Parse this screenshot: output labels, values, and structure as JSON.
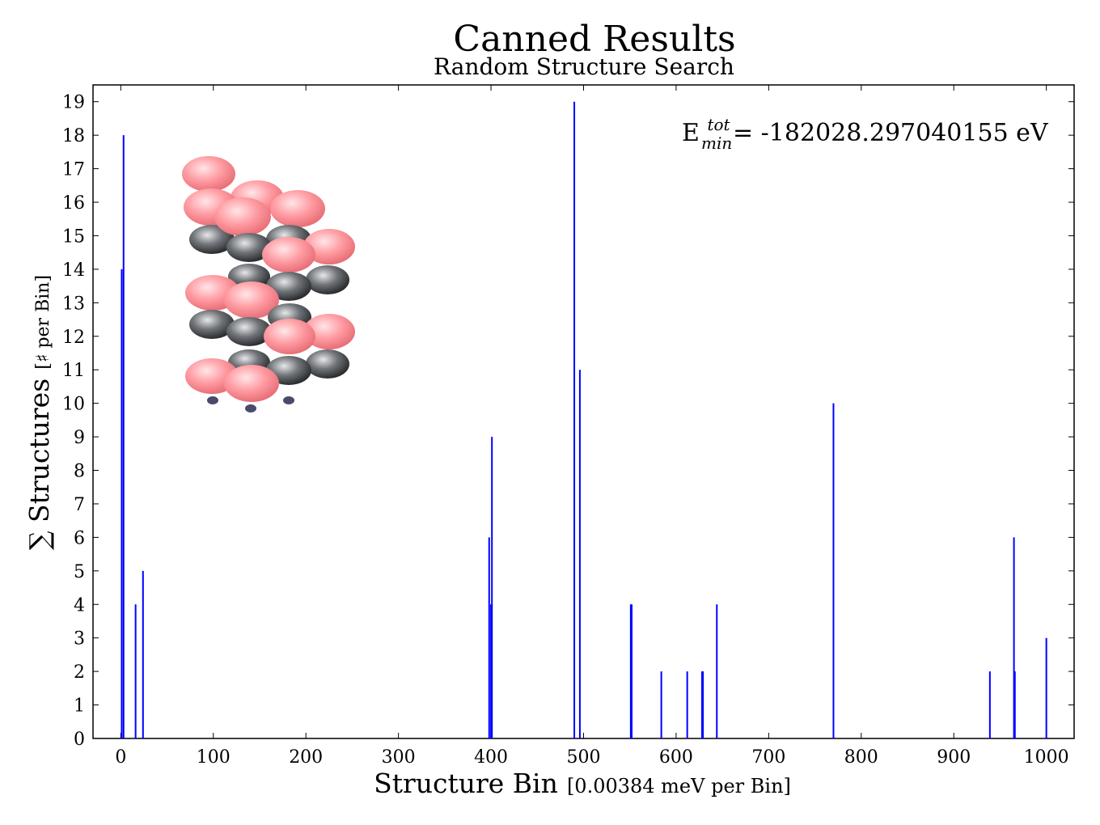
{
  "chart_data": {
    "type": "bar",
    "title": "Canned Results",
    "subtitle": "Random Structure Search",
    "xlabel_main": "Structure Bin",
    "xlabel_unit": "[0.00384 meV per Bin]",
    "ylabel_main": "∑ Structures",
    "ylabel_unit": "[♯ per Bin]",
    "annotation": {
      "prefix": "E",
      "superscript": "tot",
      "subscript": "min",
      "text": "= -182028.297040155 eV"
    },
    "xlim": [
      -30,
      1030
    ],
    "ylim": [
      0,
      19.5
    ],
    "xticks": [
      0,
      100,
      200,
      300,
      400,
      500,
      600,
      700,
      800,
      900,
      1000
    ],
    "yticks": [
      0,
      1,
      2,
      3,
      4,
      5,
      6,
      7,
      8,
      9,
      10,
      11,
      12,
      13,
      14,
      15,
      16,
      17,
      18,
      19
    ],
    "bar_color": "#0000ff",
    "grid": false,
    "bars": [
      {
        "x": 1,
        "y": 14
      },
      {
        "x": 3,
        "y": 18
      },
      {
        "x": 16,
        "y": 4
      },
      {
        "x": 24,
        "y": 5
      },
      {
        "x": 398,
        "y": 6
      },
      {
        "x": 400,
        "y": 4
      },
      {
        "x": 401,
        "y": 9
      },
      {
        "x": 490,
        "y": 19
      },
      {
        "x": 496,
        "y": 11
      },
      {
        "x": 551,
        "y": 4
      },
      {
        "x": 552,
        "y": 4
      },
      {
        "x": 584,
        "y": 2
      },
      {
        "x": 612,
        "y": 2
      },
      {
        "x": 628,
        "y": 2
      },
      {
        "x": 629,
        "y": 2
      },
      {
        "x": 644,
        "y": 4
      },
      {
        "x": 770,
        "y": 10
      },
      {
        "x": 939,
        "y": 2
      },
      {
        "x": 965,
        "y": 6
      },
      {
        "x": 966,
        "y": 2
      },
      {
        "x": 1000,
        "y": 3
      }
    ]
  },
  "inset": {
    "name": "crystal-structure-image",
    "pink": "#ff8f96",
    "grey": "#55585c",
    "base": "#4a4a6a"
  }
}
